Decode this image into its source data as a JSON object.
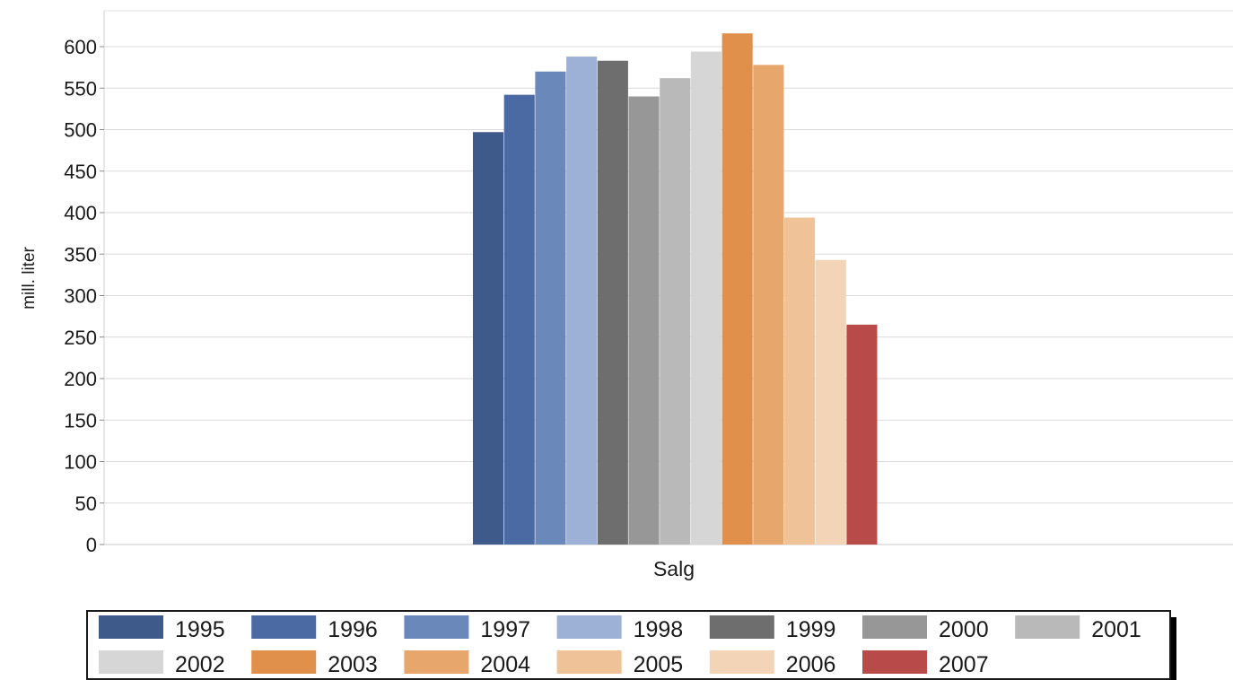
{
  "chart_data": {
    "type": "bar",
    "categories": [
      "Salg"
    ],
    "ylabel": "mill. liter",
    "xlabel": "",
    "ylim": [
      0,
      600
    ],
    "yticks": [
      0,
      50,
      100,
      150,
      200,
      250,
      300,
      350,
      400,
      450,
      500,
      550,
      600
    ],
    "grid": true,
    "legend_position": "bottom",
    "series": [
      {
        "name": "1995",
        "color": "#3e5a8a",
        "values": [
          497
        ]
      },
      {
        "name": "1996",
        "color": "#4b6aa4",
        "values": [
          542
        ]
      },
      {
        "name": "1997",
        "color": "#6a88ba",
        "values": [
          570
        ]
      },
      {
        "name": "1998",
        "color": "#9db0d6",
        "values": [
          588
        ]
      },
      {
        "name": "1999",
        "color": "#6e6e6e",
        "values": [
          583
        ]
      },
      {
        "name": "2000",
        "color": "#979797",
        "values": [
          540
        ]
      },
      {
        "name": "2001",
        "color": "#b9b9b9",
        "values": [
          562
        ]
      },
      {
        "name": "2002",
        "color": "#d6d6d6",
        "values": [
          594
        ]
      },
      {
        "name": "2003",
        "color": "#e0904a",
        "values": [
          616
        ]
      },
      {
        "name": "2004",
        "color": "#e6a66c",
        "values": [
          578
        ]
      },
      {
        "name": "2005",
        "color": "#efc297",
        "values": [
          394
        ]
      },
      {
        "name": "2006",
        "color": "#f3d4b6",
        "values": [
          343
        ]
      },
      {
        "name": "2007",
        "color": "#b94a4a",
        "values": [
          265
        ]
      }
    ]
  }
}
